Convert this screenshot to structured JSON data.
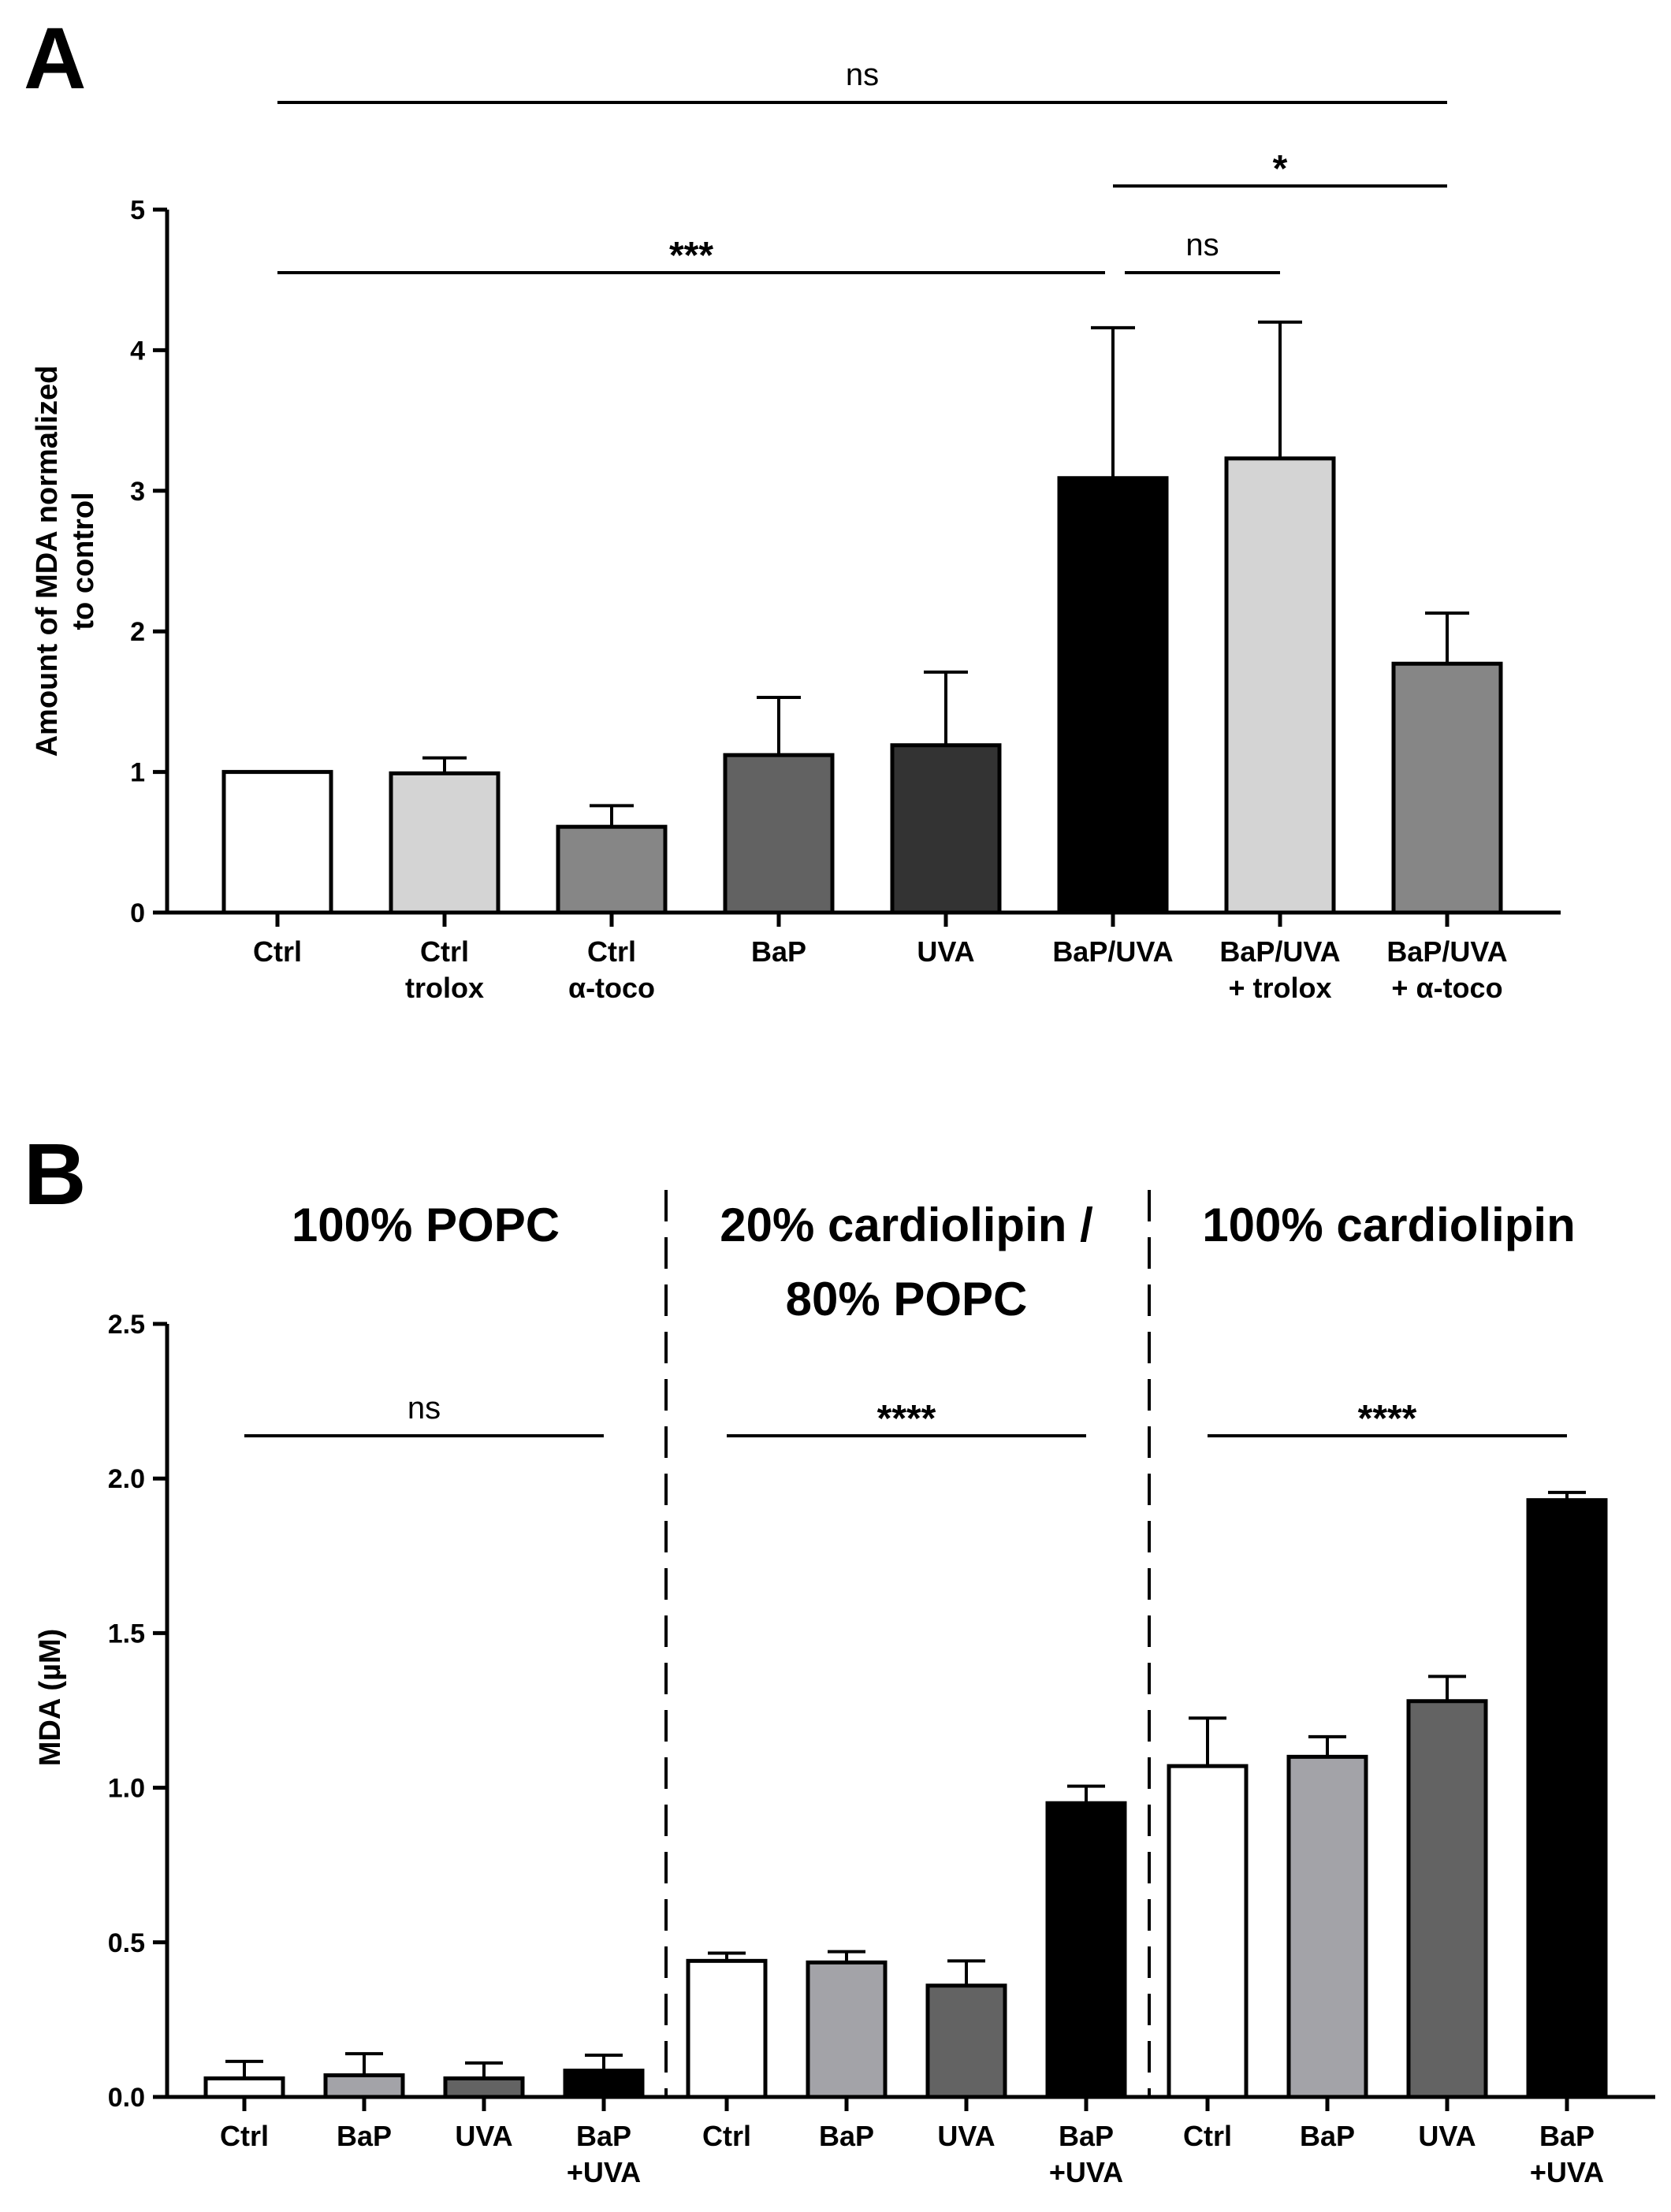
{
  "chart_data": [
    {
      "panel": "A",
      "type": "bar",
      "ylabel_lines": [
        "Amount of MDA normalized",
        "to control"
      ],
      "ylim": [
        0,
        5
      ],
      "yticks": [
        "0",
        "1",
        "2",
        "3",
        "4",
        "5"
      ],
      "categories": [
        [
          "Ctrl"
        ],
        [
          "Ctrl",
          "trolox"
        ],
        [
          "Ctrl",
          "α-toco"
        ],
        [
          "BaP"
        ],
        [
          "UVA"
        ],
        [
          "BaP/UVA"
        ],
        [
          "BaP/UVA",
          "+ trolox"
        ],
        [
          "BaP/UVA",
          "+ α-toco"
        ]
      ],
      "values": [
        1.0,
        0.99,
        0.61,
        1.12,
        1.19,
        3.09,
        3.23,
        1.77
      ],
      "errors": [
        0.0,
        0.11,
        0.15,
        0.41,
        0.52,
        1.07,
        0.97,
        0.36
      ],
      "colors": [
        "#ffffff",
        "#d4d4d4",
        "#868686",
        "#626262",
        "#333333",
        "#000000",
        "#d4d4d4",
        "#868686"
      ],
      "comparisons": [
        {
          "from": 0,
          "to": 7,
          "label": "ns"
        },
        {
          "from": 5,
          "to": 7,
          "label": "*"
        },
        {
          "from": 0,
          "to": 5,
          "label": "***"
        },
        {
          "from": 5,
          "to": 6,
          "label": "ns"
        }
      ]
    },
    {
      "panel": "B",
      "type": "bar",
      "ylabel": "MDA (µM)",
      "ylim": [
        0,
        2.5
      ],
      "yticks": [
        "0.0",
        "0.5",
        "1.0",
        "1.5",
        "2.0",
        "2.5"
      ],
      "groups": [
        {
          "title_lines": [
            "100% POPC"
          ],
          "categories": [
            [
              "Ctrl"
            ],
            [
              "BaP"
            ],
            [
              "UVA"
            ],
            [
              "BaP",
              "+UVA"
            ]
          ],
          "values": [
            0.06,
            0.07,
            0.06,
            0.085
          ],
          "errors": [
            0.055,
            0.07,
            0.05,
            0.05
          ],
          "comparison": "ns"
        },
        {
          "title_lines": [
            "20% cardiolipin /",
            "80% POPC"
          ],
          "categories": [
            [
              "Ctrl"
            ],
            [
              "BaP"
            ],
            [
              "UVA"
            ],
            [
              "BaP",
              "+UVA"
            ]
          ],
          "values": [
            0.44,
            0.435,
            0.36,
            0.95
          ],
          "errors": [
            0.025,
            0.035,
            0.08,
            0.055
          ],
          "comparison": "****"
        },
        {
          "title_lines": [
            "100% cardiolipin"
          ],
          "categories": [
            [
              "Ctrl"
            ],
            [
              "BaP"
            ],
            [
              "UVA"
            ],
            [
              "BaP",
              "+UVA"
            ]
          ],
          "values": [
            1.07,
            1.1,
            1.28,
            1.93
          ],
          "errors": [
            0.155,
            0.065,
            0.08,
            0.025
          ],
          "comparison": "****"
        }
      ],
      "colors": [
        "#ffffff",
        "#a3a3a8",
        "#636363",
        "#000000"
      ]
    }
  ]
}
